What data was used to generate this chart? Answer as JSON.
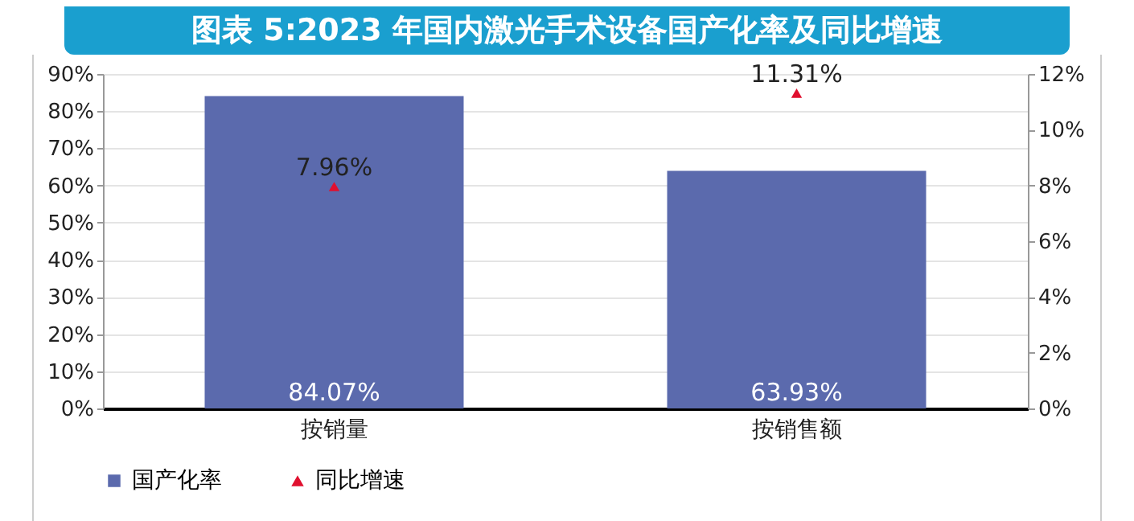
{
  "chart_data": {
    "type": "bar",
    "title": "图表 5:2023 年国内激光手术设备国产化率及同比增速",
    "categories": [
      "按销量",
      "按销售额"
    ],
    "series": [
      {
        "name": "国产化率",
        "color": "#5b6aad",
        "values": [
          84.07,
          63.93
        ],
        "value_labels": [
          "84.07%",
          "63.93%"
        ]
      },
      {
        "name": "同比增速",
        "type": "scatter",
        "axis": "y2",
        "marker": "triangle",
        "color": "#e0102f",
        "values": [
          7.96,
          11.31
        ],
        "value_labels": [
          "7.96%",
          "11.31%"
        ]
      }
    ],
    "ylim": [
      0,
      90
    ],
    "yticks": [
      {
        "value": 0,
        "label": "0%"
      },
      {
        "value": 10,
        "label": "10%"
      },
      {
        "value": 20,
        "label": "20%"
      },
      {
        "value": 30,
        "label": "30%"
      },
      {
        "value": 40,
        "label": "40%"
      },
      {
        "value": 50,
        "label": "50%"
      },
      {
        "value": 60,
        "label": "60%"
      },
      {
        "value": 70,
        "label": "70%"
      },
      {
        "value": 80,
        "label": "80%"
      },
      {
        "value": 90,
        "label": "90%"
      }
    ],
    "y2lim": [
      0,
      12
    ],
    "y2ticks": [
      {
        "value": 0,
        "label": "0%"
      },
      {
        "value": 2,
        "label": "2%"
      },
      {
        "value": 4,
        "label": "4%"
      },
      {
        "value": 6,
        "label": "6%"
      },
      {
        "value": 8,
        "label": "8%"
      },
      {
        "value": 10,
        "label": "10%"
      },
      {
        "value": 12,
        "label": "12%"
      }
    ],
    "grid": "y",
    "legend": "bottom"
  }
}
